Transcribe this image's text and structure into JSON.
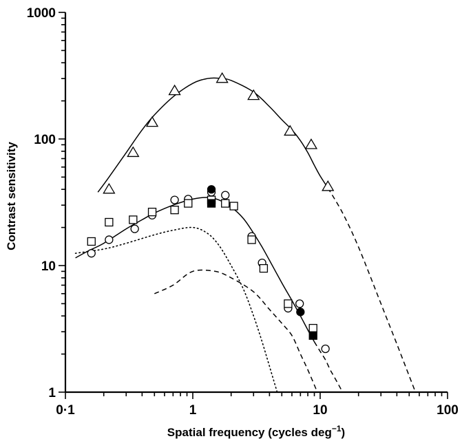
{
  "chart_data": {
    "type": "scatter",
    "xlabel": "Spatial frequency (cycles deg",
    "xlabel_superscript": "−1",
    "xlabel_close": ")",
    "ylabel": "Contrast sensitivity",
    "x_scale": "log",
    "y_scale": "log",
    "xlim": [
      0.1,
      100
    ],
    "ylim": [
      1,
      1000
    ],
    "grid": false,
    "legend": "none",
    "x_ticks": [
      {
        "value": 0.1,
        "label": "0·1"
      },
      {
        "value": 1,
        "label": "1"
      },
      {
        "value": 10,
        "label": "10"
      },
      {
        "value": 100,
        "label": "100"
      }
    ],
    "y_ticks": [
      {
        "value": 1,
        "label": "1"
      },
      {
        "value": 10,
        "label": "10"
      },
      {
        "value": 100,
        "label": "100"
      },
      {
        "value": 1000,
        "label": "1000"
      }
    ],
    "series": [
      {
        "marker": "open-triangle",
        "x": [
          0.22,
          0.34,
          0.48,
          0.72,
          1.7,
          3.0,
          5.8,
          8.5,
          11.5
        ],
        "y": [
          40,
          78,
          135,
          240,
          300,
          220,
          115,
          90,
          42
        ]
      },
      {
        "marker": "open-circle",
        "x": [
          0.16,
          0.22,
          0.35,
          0.48,
          0.72,
          0.92,
          1.4,
          1.8,
          2.9,
          3.5,
          5.6,
          6.9,
          11
        ],
        "y": [
          12.5,
          16,
          19.5,
          25,
          33,
          33.5,
          38,
          36,
          17,
          10.5,
          4.6,
          5.0,
          2.2
        ]
      },
      {
        "marker": "filled-circle",
        "x": [
          1.4,
          7.0
        ],
        "y": [
          40,
          4.3
        ]
      },
      {
        "marker": "open-square",
        "x": [
          0.16,
          0.22,
          0.34,
          0.48,
          0.72,
          0.92,
          1.4,
          1.8,
          2.1,
          2.9,
          3.6,
          5.6,
          8.8
        ],
        "y": [
          15.5,
          22,
          23,
          26.5,
          27.5,
          31,
          33,
          31,
          29.5,
          16,
          9.5,
          5.0,
          3.2
        ]
      },
      {
        "marker": "filled-square",
        "x": [
          1.4,
          8.8
        ],
        "y": [
          31,
          2.8
        ]
      }
    ],
    "curves": [
      {
        "style": "solid",
        "x": [
          0.18,
          0.22,
          0.3,
          0.4,
          0.5,
          0.7,
          1.0,
          1.3,
          1.6,
          2.0,
          3.0,
          4.0,
          5.0,
          6.0,
          7.0,
          8.0,
          9.0,
          10.0,
          11.5
        ],
        "y": [
          38,
          50,
          78,
          118,
          155,
          215,
          275,
          300,
          302,
          290,
          235,
          180,
          142,
          118,
          97,
          78,
          62,
          51,
          41
        ]
      },
      {
        "style": "dashed",
        "x": [
          11.5,
          15,
          20,
          30,
          40,
          56
        ],
        "y": [
          41,
          26,
          14,
          5,
          2.4,
          1
        ]
      },
      {
        "style": "solid",
        "x": [
          0.12,
          0.15,
          0.2,
          0.3,
          0.4,
          0.5,
          0.7,
          1.0,
          1.3,
          1.6,
          2.0,
          2.5,
          3.0,
          3.5,
          4.0,
          5.0,
          6.0,
          7.0,
          8.0,
          9.0
        ],
        "y": [
          11.5,
          13,
          15,
          19.5,
          23,
          26,
          30,
          33.5,
          34.5,
          33,
          29,
          23.5,
          18,
          14,
          11,
          7.3,
          5.3,
          4.0,
          3.1,
          2.5
        ]
      },
      {
        "style": "dashed",
        "x": [
          9.0,
          10,
          11,
          12,
          13,
          15
        ],
        "y": [
          2.5,
          2.1,
          1.8,
          1.5,
          1.3,
          1.0
        ]
      },
      {
        "style": "dotted",
        "x": [
          0.12,
          0.2,
          0.3,
          0.5,
          0.7,
          1.0,
          1.3,
          1.6,
          2.0,
          2.5,
          3.0,
          3.5,
          4.0,
          4.6
        ],
        "y": [
          12.5,
          13.5,
          15,
          17.5,
          19,
          20,
          18,
          14.5,
          10,
          6.5,
          4,
          2.5,
          1.6,
          1.0
        ]
      },
      {
        "style": "dashed",
        "x": [
          0.5,
          0.7,
          1.0,
          1.5,
          2.0,
          3.0,
          4.0,
          5.0,
          6.0,
          7.0,
          8.0,
          9.5
        ],
        "y": [
          6,
          7,
          9,
          9,
          8,
          6.2,
          4.5,
          3.5,
          2.8,
          2.0,
          1.5,
          1.0
        ]
      }
    ]
  }
}
